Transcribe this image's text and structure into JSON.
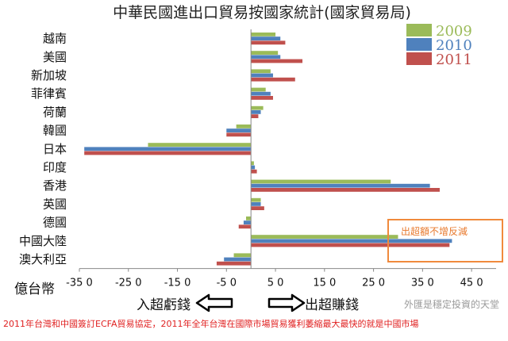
{
  "chart_data": {
    "type": "bar",
    "orientation": "horizontal",
    "title": "中華民國進出口貿易按國家統計(國家貿易局)",
    "categories": [
      "越南",
      "美國",
      "新加坡",
      "菲律賓",
      "荷蘭",
      "韓國",
      "日本",
      "印度",
      "香港",
      "英國",
      "德國",
      "中國大陸",
      "澳大利亞"
    ],
    "series": [
      {
        "name": "2009",
        "color": "#9bbb59",
        "values": [
          5.0,
          5.5,
          4.0,
          3.0,
          2.5,
          -3.0,
          -21.0,
          0.6,
          28.5,
          2.0,
          -1.0,
          30.0,
          -3.5
        ]
      },
      {
        "name": "2010",
        "color": "#4f81bd",
        "values": [
          6.0,
          6.0,
          4.5,
          4.0,
          2.0,
          -5.0,
          -34.0,
          0.8,
          36.5,
          2.0,
          -1.5,
          41.0,
          -5.5
        ]
      },
      {
        "name": "2011",
        "color": "#c0504d",
        "values": [
          7.0,
          10.5,
          9.0,
          4.5,
          1.5,
          -5.0,
          -34.0,
          1.2,
          38.5,
          2.7,
          -2.5,
          40.5,
          -7.0
        ]
      }
    ],
    "xlim": [
      -35,
      50
    ],
    "xticks": [
      -35,
      -25,
      -15,
      -5,
      5,
      15,
      25,
      35,
      45
    ],
    "xtick_labels": [
      "-35 0",
      "-25 0",
      "-15 0",
      "-5 0",
      "5 0",
      "15 0",
      "25 0",
      "35 0",
      "45 0"
    ],
    "unit_label": "億台幣",
    "legend_position": "top-right",
    "grid": false
  },
  "annotations": {
    "callout": "出超額不增反減",
    "left_label": "入超虧錢",
    "right_label": "出超賺錢",
    "watermark": "外匯是穩定投資的天堂",
    "footnote": "2011年台灣和中國簽訂ECFA貿易協定，2011年全年台灣在國際市場貿易獲利萎縮最大最快的就是中國市場"
  },
  "colors": {
    "callout_border": "#f08a3c",
    "footnote": "#e02020"
  }
}
